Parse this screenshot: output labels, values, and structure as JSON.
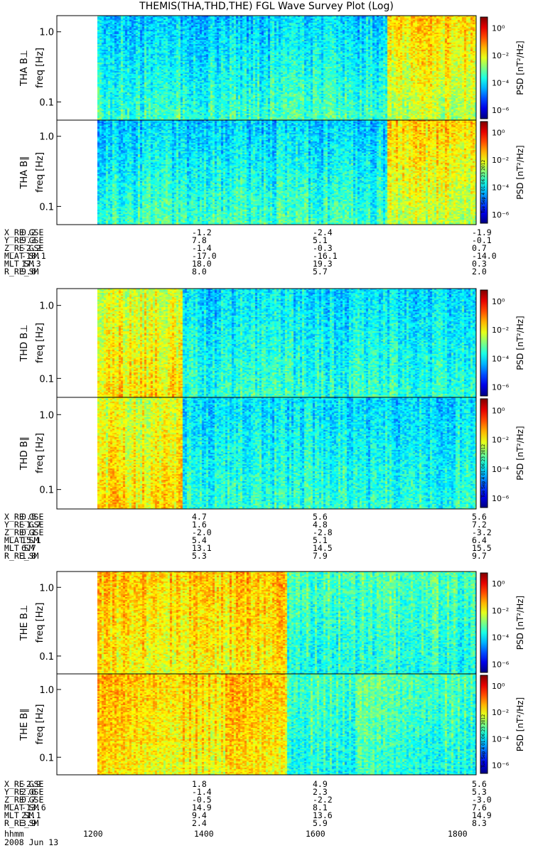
{
  "title": "THEMIS(THA,THD,THE) FGL Wave Survey Plot (Log)",
  "date_label": "2008 Jun 13",
  "time_label": "hhmm",
  "time_ticks": [
    "1200",
    "1400",
    "1600",
    "1800"
  ],
  "colorbar": {
    "label": "PSD [nT²/Hz]",
    "ticks": [
      "10⁰",
      "10⁻²",
      "10⁻⁴",
      "10⁻⁶"
    ]
  },
  "freq_axis": {
    "label": "freq [Hz]",
    "ticks": [
      "1.0",
      "0.1"
    ],
    "scale": "log"
  },
  "stamp": "Tue Sep 4 01:06:23 2012",
  "chart_data": [
    {
      "type": "heatmap",
      "probe": "THA",
      "panels": [
        {
          "label": "THA B⊥"
        },
        {
          "label": "THA B∥"
        }
      ],
      "ephemeris": [
        {
          "name": "X_RE_GSE",
          "values": [
            "0.2",
            "-1.2",
            "-2.4",
            "-1.9"
          ]
        },
        {
          "name": "Y_RE_GSE",
          "values": [
            "9.3",
            "7.8",
            "5.1",
            "-0.1"
          ]
        },
        {
          "name": "Z_RE_GSE",
          "values": [
            "-2.2",
            "-1.4",
            "-0.3",
            "0.7"
          ]
        },
        {
          "name": "MLAT_SM",
          "values": [
            "-18.1",
            "-17.0",
            "-16.1",
            "-14.0"
          ]
        },
        {
          "name": "MLT_SM",
          "values": [
            "17.3",
            "18.0",
            "19.3",
            "0.3"
          ]
        },
        {
          "name": "R_RE_SM",
          "values": [
            "9.6",
            "8.0",
            "5.7",
            "2.0"
          ]
        }
      ]
    },
    {
      "type": "heatmap",
      "probe": "THD",
      "panels": [
        {
          "label": "THD B⊥"
        },
        {
          "label": "THD B∥"
        }
      ],
      "ephemeris": [
        {
          "name": "X_RE_GSE",
          "values": [
            "0.5",
            "4.7",
            "5.6",
            "5.6"
          ]
        },
        {
          "name": "Y_RE_GSE",
          "values": [
            "-1.7",
            "1.6",
            "4.8",
            "7.2"
          ]
        },
        {
          "name": "Z_RE_GSE",
          "values": [
            "0.1",
            "-2.0",
            "-2.8",
            "-3.2"
          ]
        },
        {
          "name": "MLAT_SM",
          "values": [
            "15.1",
            "5.4",
            "5.1",
            "6.4"
          ]
        },
        {
          "name": "MLT_SM",
          "values": [
            "6.7",
            "13.1",
            "14.5",
            "15.5"
          ]
        },
        {
          "name": "R_RE_SM",
          "values": [
            "1.8",
            "5.3",
            "7.9",
            "9.7"
          ]
        }
      ]
    },
    {
      "type": "heatmap",
      "probe": "THE",
      "panels": [
        {
          "label": "THE B⊥"
        },
        {
          "label": "THE B∥"
        }
      ],
      "ephemeris": [
        {
          "name": "X_RE_GSE",
          "values": [
            "-2.9",
            "1.8",
            "4.9",
            "5.6"
          ]
        },
        {
          "name": "Y_RE_GSE",
          "values": [
            "2.6",
            "-1.4",
            "2.3",
            "5.3"
          ]
        },
        {
          "name": "Z_RE_GSE",
          "values": [
            "0.7",
            "-0.5",
            "-2.2",
            "-3.0"
          ]
        },
        {
          "name": "MLAT_SM",
          "values": [
            "-13.6",
            "14.9",
            "8.1",
            "7.6"
          ]
        },
        {
          "name": "MLT_SM",
          "values": [
            "21.1",
            "9.4",
            "13.6",
            "14.9"
          ]
        },
        {
          "name": "R_RE_SM",
          "values": [
            "3.9",
            "2.4",
            "5.9",
            "8.3"
          ]
        }
      ]
    }
  ]
}
